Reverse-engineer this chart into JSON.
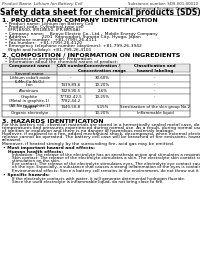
{
  "bg_color": "#ffffff",
  "header_left": "Product Name: Lithium Ion Battery Cell",
  "header_right": "Substance number: SDS-001-00010\nEstablishment / Revision: Dec.7.2010",
  "title": "Safety data sheet for chemical products (SDS)",
  "section1_title": "1. PRODUCT AND COMPANY IDENTIFICATION",
  "section1_lines": [
    "  • Product name: Lithium Ion Battery Cell",
    "  • Product code: Cylindrical-type cell",
    "    (IFR18500, IFR18650, IFR B650A)",
    "  • Company name:    Benyo Electric Co., Ltd.,  Mobile Energy Company",
    "  • Address:          2201  Kannondori, Sumoto City, Hyogo, Japan",
    "  • Telephone number:   +81-(799)-26-4111",
    "  • Fax number:   +81-(799)-26-4120",
    "  • Emergency telephone number (daytimes): +81-799-26-3942",
    "    (Night and holiday): +81-799-26-4101"
  ],
  "section2_title": "2. COMPOSITION / INFORMATION ON INGREDIENTS",
  "section2_lines": [
    "  • Substance or preparation: Preparation",
    "  • Information about the chemical nature of product:"
  ],
  "table_headers": [
    "Component name",
    "CAS number",
    "Concentration /\nConcentration range",
    "Classification and\nhazard labeling"
  ],
  "table_col_header2": "Several name",
  "table_rows": [
    [
      "Lithium cobalt oxide\n(LiMn-Co-Ni-O₂)",
      "-",
      "30-60%",
      "-"
    ],
    [
      "Iron",
      "7439-89-6",
      "10-20%",
      "-"
    ],
    [
      "Aluminum",
      "7429-90-5",
      "2-6%",
      "-"
    ],
    [
      "Graphite\n(Metal in graphite-1)\n(All-No in graphite-1)",
      "77782-42-5\n7782-44-2",
      "10-25%",
      "-"
    ],
    [
      "Copper",
      "7440-50-8",
      "5-15%",
      "Sensitization of the skin group No.2"
    ],
    [
      "Organic electrolyte",
      "-",
      "10-20%",
      "Inflammable liquid"
    ]
  ],
  "section3_title": "3. HAZARDS IDENTIFICATION",
  "section3_para1": "For this battery cell, chemical materials are stored in a hermetically sealed metal case, designed to withstand temperatures and pressures experienced during normal use. As a result, during normal use, there is no physical danger of ignition or explosion and there is no danger of hazardous materials leakage.",
  "section3_para2": "However, if exposed to a fire, added mechanical shock, decomposed, when external electric shock may cause the gas release cannot be operated. The battery cell case will be breached of fire emissions, hazardous materials may be released.",
  "section3_para3": "Moreover, if heated strongly by the surrounding fire, acid gas may be emitted.",
  "section3_bullet1": "• Most important hazard and effects:",
  "section3_human": "Human health effects:",
  "section3_inhalation": "Inhalation: The release of the electrolyte has an anesthesia action and stimulates a respiratory tract.",
  "section3_skin": "Skin contact: The release of the electrolyte stimulates a skin. The electrolyte skin contact causes a sore and stimulation on the skin.",
  "section3_eye": "Eye contact: The release of the electrolyte stimulates eyes. The electrolyte eye contact causes a sore and stimulation on the eye. Especially, a substance that causes a strong inflammation of the eyes is contained.",
  "section3_env": "Environmental effects: Since a battery cell remains in the environment, do not throw out it into the environment.",
  "section3_bullet2": "• Specific hazards:",
  "section3_specific1": "If the electrolyte contacts with water, it will generate detrimental hydrogen fluoride.",
  "section3_specific2": "Since the used electrolyte is inflammable liquid, do not bring close to fire."
}
